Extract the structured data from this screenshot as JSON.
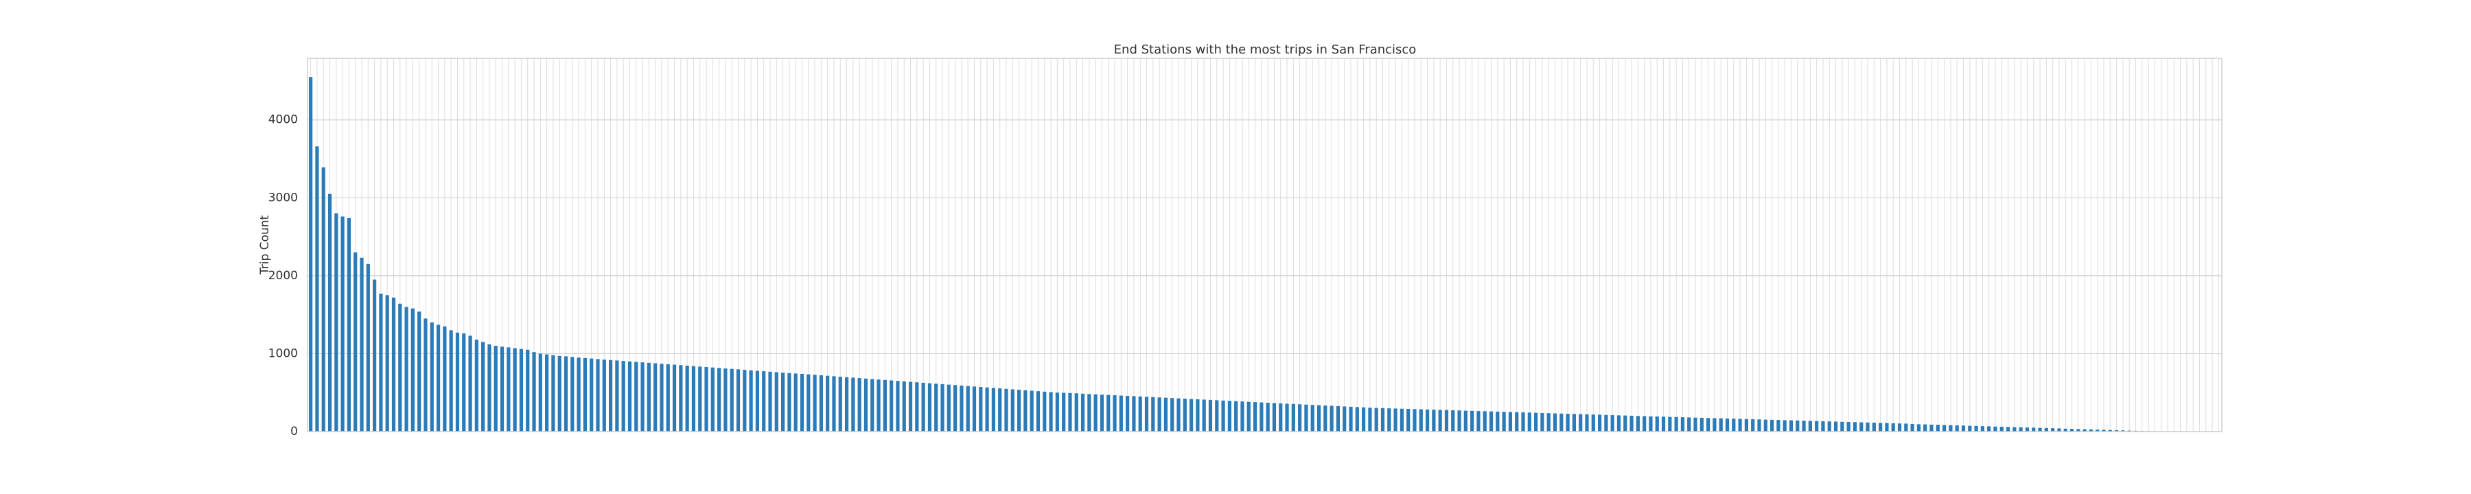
{
  "chart_data": {
    "type": "bar",
    "title": "End Stations with the most trips in San Francisco",
    "y_label": "Trip Count",
    "color": "#2b7bb9",
    "grid": true,
    "ylim": [
      0,
      4790
    ],
    "yticks": [
      0,
      1000,
      2000,
      3000,
      4000
    ],
    "values": [
      4550,
      3660,
      3390,
      3050,
      2800,
      2760,
      2740,
      2300,
      2230,
      2150,
      1950,
      1770,
      1750,
      1720,
      1640,
      1600,
      1580,
      1540,
      1450,
      1400,
      1370,
      1350,
      1300,
      1270,
      1260,
      1230,
      1180,
      1150,
      1120,
      1100,
      1090,
      1080,
      1070,
      1060,
      1050,
      1020,
      1000,
      990,
      980,
      970,
      965,
      958,
      950,
      943,
      937,
      930,
      924,
      918,
      912,
      906,
      900,
      894,
      888,
      882,
      876,
      870,
      864,
      858,
      852,
      846,
      840,
      834,
      828,
      822,
      816,
      810,
      804,
      798,
      792,
      786,
      780,
      774,
      768,
      762,
      756,
      750,
      745,
      740,
      734,
      728,
      722,
      716,
      710,
      704,
      698,
      692,
      686,
      680,
      674,
      668,
      662,
      656,
      650,
      644,
      638,
      632,
      626,
      620,
      614,
      608,
      602,
      596,
      590,
      584,
      578,
      572,
      566,
      560,
      554,
      548,
      542,
      536,
      530,
      524,
      518,
      512,
      506,
      500,
      497,
      494,
      491,
      486,
      482,
      478,
      474,
      470,
      466,
      462,
      458,
      454,
      450,
      446,
      442,
      438,
      434,
      430,
      426,
      422,
      418,
      414,
      410,
      406,
      402,
      398,
      394,
      390,
      386,
      382,
      378,
      374,
      370,
      366,
      362,
      358,
      354,
      350,
      346,
      342,
      338,
      334,
      330,
      326,
      322,
      318,
      314,
      310,
      306,
      303,
      301,
      298,
      296,
      293,
      291,
      288,
      286,
      283,
      281,
      278,
      276,
      273,
      271,
      268,
      266,
      263,
      261,
      258,
      256,
      253,
      251,
      248,
      246,
      243,
      241,
      238,
      236,
      233,
      231,
      228,
      226,
      223,
      221,
      218,
      216,
      213,
      211,
      208,
      206,
      203,
      200,
      198,
      195,
      193,
      191,
      188,
      186,
      184,
      181,
      179,
      177,
      174,
      172,
      170,
      167,
      165,
      163,
      160,
      158,
      156,
      153,
      151,
      149,
      146,
      144,
      142,
      139,
      137,
      135,
      132,
      130,
      128,
      125,
      123,
      121,
      118,
      116,
      114,
      111,
      109,
      107,
      104,
      102,
      97,
      94,
      92,
      89,
      87,
      84,
      82,
      79,
      77,
      74,
      72,
      69,
      67,
      64,
      62,
      59,
      57,
      54,
      52,
      50,
      47,
      45,
      42,
      40,
      37,
      35,
      32,
      30,
      27,
      25,
      22,
      20,
      17,
      15,
      12,
      10,
      8,
      6,
      5,
      4,
      4,
      3,
      3,
      2,
      2,
      2,
      1,
      1,
      1
    ]
  }
}
